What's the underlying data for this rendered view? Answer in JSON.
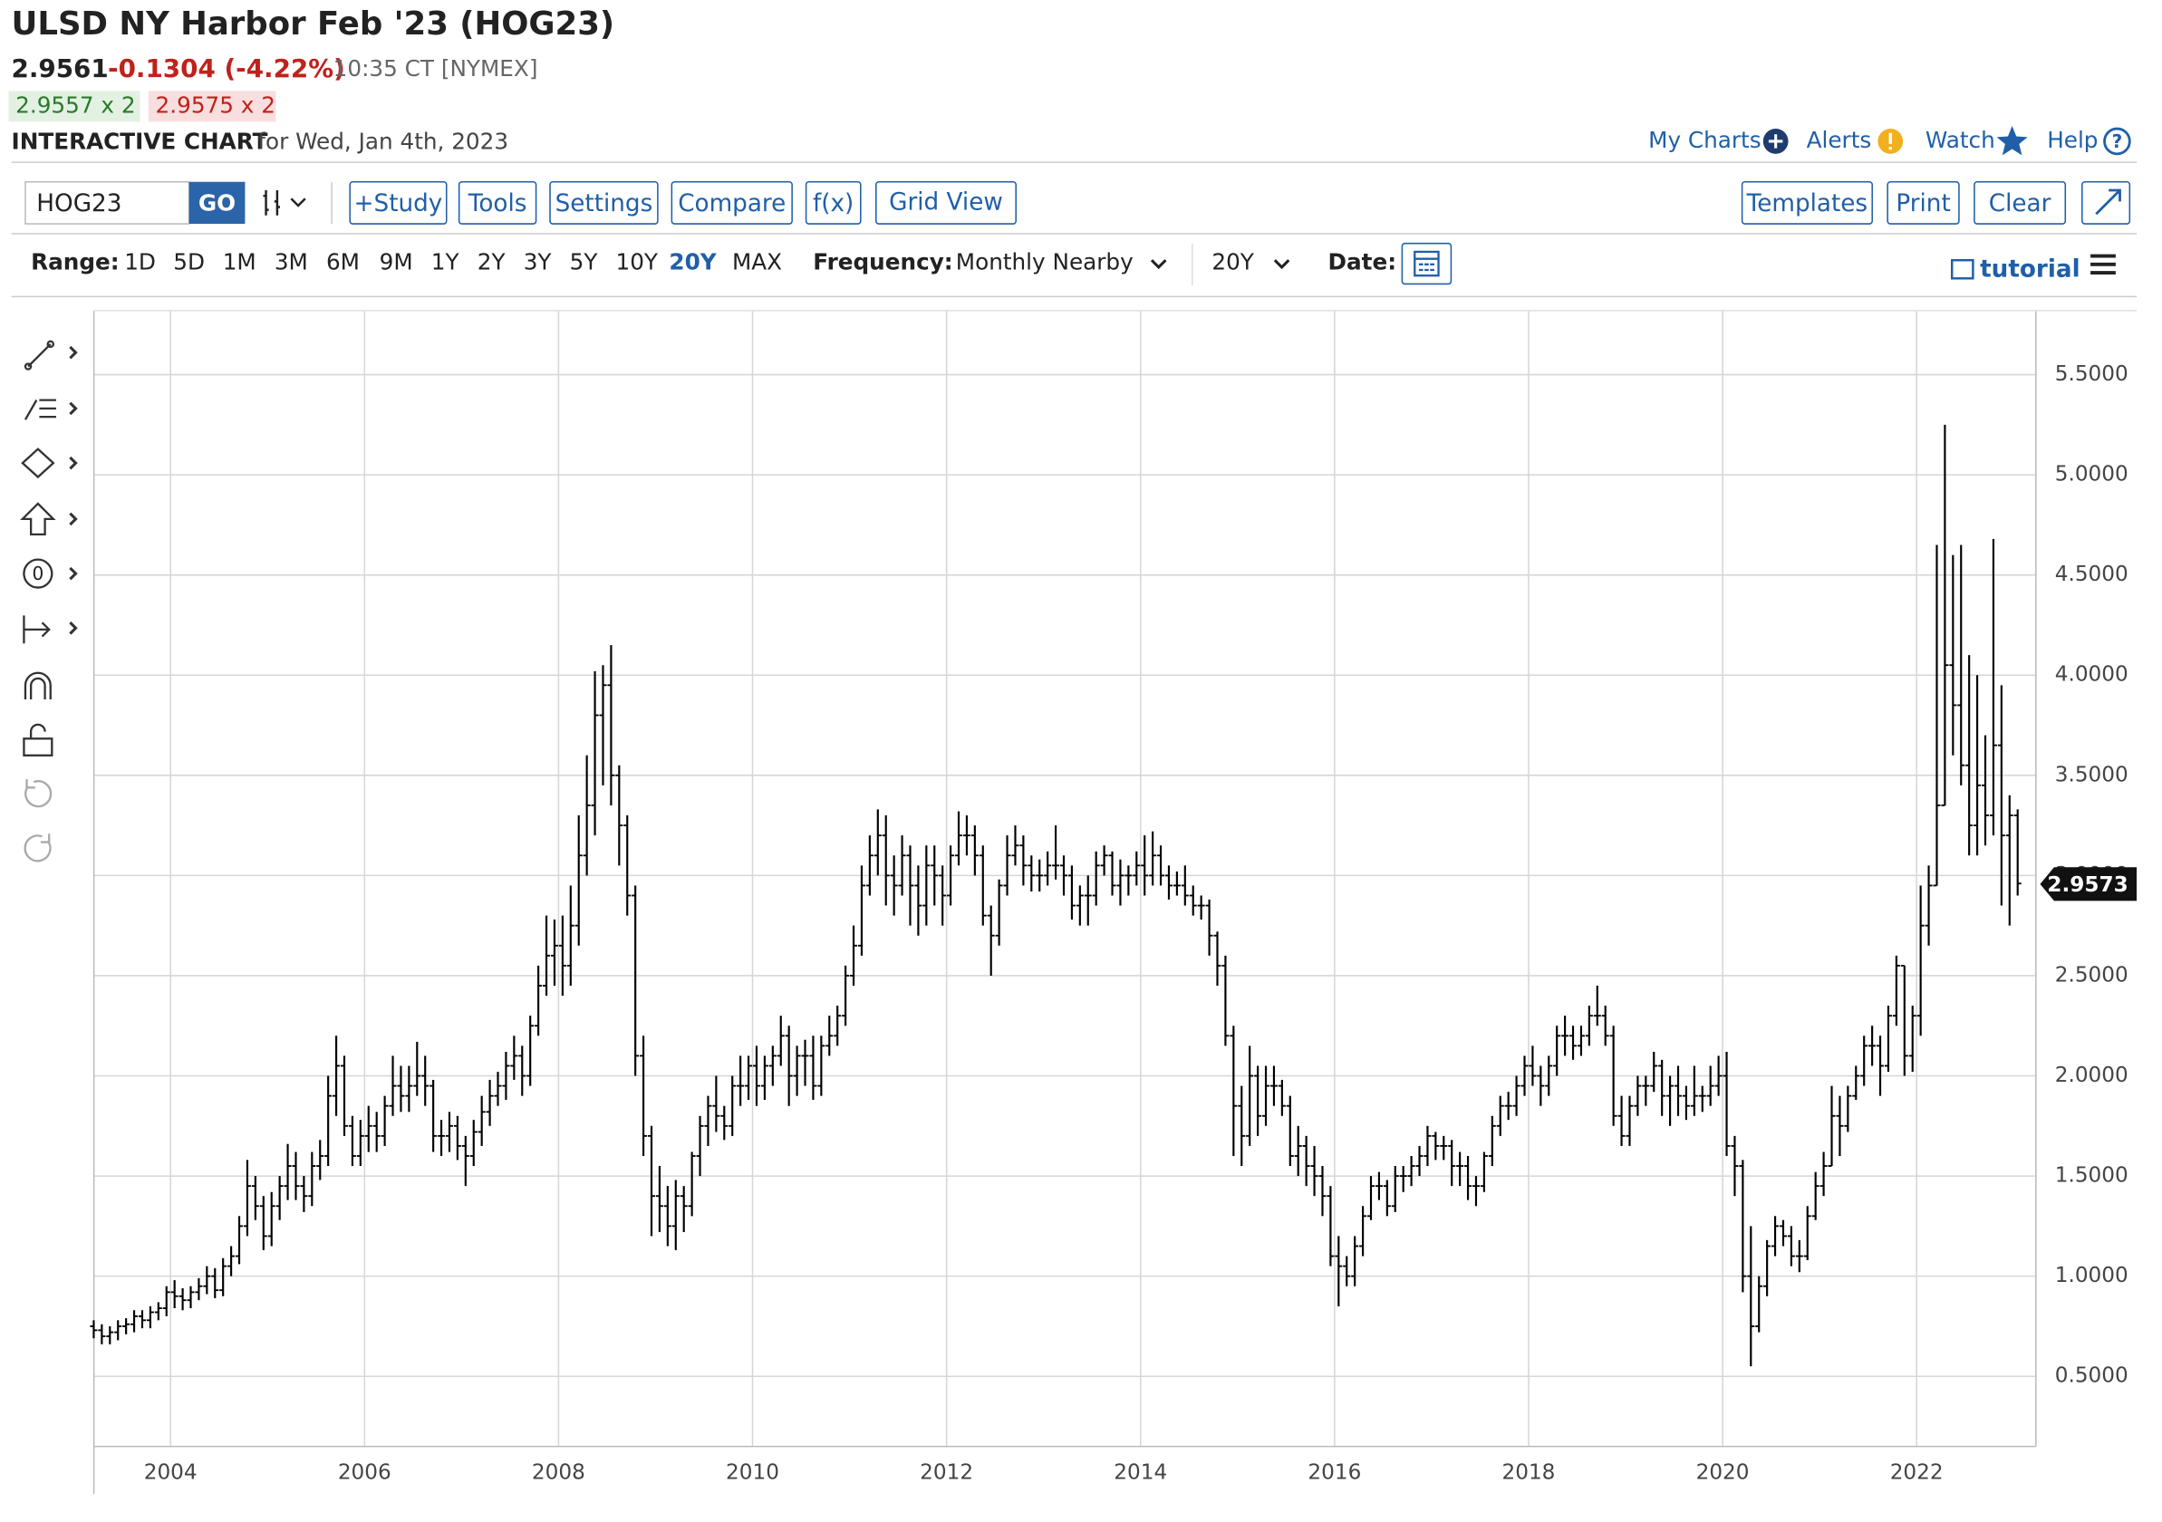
{
  "header": {
    "title": "ULSD NY Harbor Feb '23 (HOG23)",
    "price": "2.9561",
    "change": "-0.1304 (-4.22%)",
    "time": "10:35 CT [NYMEX]",
    "bid": "2.9557 x 2",
    "ask": "2.9575 x 2",
    "chart_label": "INTERACTIVE CHART",
    "chart_date": "for Wed, Jan 4th, 2023"
  },
  "links": [
    "My Charts",
    "Alerts",
    "Watch",
    "Help"
  ],
  "toolbar": {
    "symbol": "HOG23",
    "go": "GO",
    "buttons": [
      "+Study",
      "Tools",
      "Settings",
      "Compare",
      "f(x)",
      "Grid View"
    ],
    "right_buttons": [
      "Templates",
      "Print",
      "Clear"
    ]
  },
  "range_bar": {
    "label": "Range:",
    "ranges": [
      "1D",
      "5D",
      "1M",
      "3M",
      "6M",
      "9M",
      "1Y",
      "2Y",
      "3Y",
      "5Y",
      "10Y",
      "20Y",
      "MAX"
    ],
    "active": "20Y",
    "frequency_label": "Frequency:",
    "frequency": "Monthly Nearby",
    "period": "20Y",
    "date_label": "Date:",
    "tutorial": "tutorial"
  },
  "chart_data": {
    "type": "ohlc",
    "color": "#000000",
    "grid": true,
    "xlim": [
      2003.21,
      2023.23
    ],
    "xticks": [
      2004,
      2006,
      2008,
      2010,
      2012,
      2014,
      2016,
      2018,
      2020,
      2022
    ],
    "ylim": [
      0.15,
      5.82
    ],
    "yticks": [
      {
        "value": 0.5,
        "label": "0.5000"
      },
      {
        "value": 1,
        "label": "1.0000"
      },
      {
        "value": 1.5,
        "label": "1.5000"
      },
      {
        "value": 2,
        "label": "2.0000"
      },
      {
        "value": 2.5,
        "label": "2.5000"
      },
      {
        "value": 3,
        "label": "3.0000"
      },
      {
        "value": 3.5,
        "label": "3.5000"
      },
      {
        "value": 4,
        "label": "4.0000"
      },
      {
        "value": 4.5,
        "label": "4.5000"
      },
      {
        "value": 5,
        "label": "5.0000"
      },
      {
        "value": 5.5,
        "label": "5.5000"
      }
    ],
    "last_price": 2.9573,
    "x": [
      "2003-03",
      "2003-04",
      "2003-05",
      "2003-06",
      "2003-07",
      "2003-08",
      "2003-09",
      "2003-10",
      "2003-11",
      "2003-12",
      "2004-01",
      "2004-02",
      "2004-03",
      "2004-04",
      "2004-05",
      "2004-06",
      "2004-07",
      "2004-08",
      "2004-09",
      "2004-10",
      "2004-11",
      "2004-12",
      "2005-01",
      "2005-02",
      "2005-03",
      "2005-04",
      "2005-05",
      "2005-06",
      "2005-07",
      "2005-08",
      "2005-09",
      "2005-10",
      "2005-11",
      "2005-12",
      "2006-01",
      "2006-02",
      "2006-03",
      "2006-04",
      "2006-05",
      "2006-06",
      "2006-07",
      "2006-08",
      "2006-09",
      "2006-10",
      "2006-11",
      "2006-12",
      "2007-01",
      "2007-02",
      "2007-03",
      "2007-04",
      "2007-05",
      "2007-06",
      "2007-07",
      "2007-08",
      "2007-09",
      "2007-10",
      "2007-11",
      "2007-12",
      "2008-01",
      "2008-02",
      "2008-03",
      "2008-04",
      "2008-05",
      "2008-06",
      "2008-07",
      "2008-08",
      "2008-09",
      "2008-10",
      "2008-11",
      "2008-12",
      "2009-01",
      "2009-02",
      "2009-03",
      "2009-04",
      "2009-05",
      "2009-06",
      "2009-07",
      "2009-08",
      "2009-09",
      "2009-10",
      "2009-11",
      "2009-12",
      "2010-01",
      "2010-02",
      "2010-03",
      "2010-04",
      "2010-05",
      "2010-06",
      "2010-07",
      "2010-08",
      "2010-09",
      "2010-10",
      "2010-11",
      "2010-12",
      "2011-01",
      "2011-02",
      "2011-03",
      "2011-04",
      "2011-05",
      "2011-06",
      "2011-07",
      "2011-08",
      "2011-09",
      "2011-10",
      "2011-11",
      "2011-12",
      "2012-01",
      "2012-02",
      "2012-03",
      "2012-04",
      "2012-05",
      "2012-06",
      "2012-07",
      "2012-08",
      "2012-09",
      "2012-10",
      "2012-11",
      "2012-12",
      "2013-01",
      "2013-02",
      "2013-03",
      "2013-04",
      "2013-05",
      "2013-06",
      "2013-07",
      "2013-08",
      "2013-09",
      "2013-10",
      "2013-11",
      "2013-12",
      "2014-01",
      "2014-02",
      "2014-03",
      "2014-04",
      "2014-05",
      "2014-06",
      "2014-07",
      "2014-08",
      "2014-09",
      "2014-10",
      "2014-11",
      "2014-12",
      "2015-01",
      "2015-02",
      "2015-03",
      "2015-04",
      "2015-05",
      "2015-06",
      "2015-07",
      "2015-08",
      "2015-09",
      "2015-10",
      "2015-11",
      "2015-12",
      "2016-01",
      "2016-02",
      "2016-03",
      "2016-04",
      "2016-05",
      "2016-06",
      "2016-07",
      "2016-08",
      "2016-09",
      "2016-10",
      "2016-11",
      "2016-12",
      "2017-01",
      "2017-02",
      "2017-03",
      "2017-04",
      "2017-05",
      "2017-06",
      "2017-07",
      "2017-08",
      "2017-09",
      "2017-10",
      "2017-11",
      "2017-12",
      "2018-01",
      "2018-02",
      "2018-03",
      "2018-04",
      "2018-05",
      "2018-06",
      "2018-07",
      "2018-08",
      "2018-09",
      "2018-10",
      "2018-11",
      "2018-12",
      "2019-01",
      "2019-02",
      "2019-03",
      "2019-04",
      "2019-05",
      "2019-06",
      "2019-07",
      "2019-08",
      "2019-09",
      "2019-10",
      "2019-11",
      "2019-12",
      "2020-01",
      "2020-02",
      "2020-03",
      "2020-04",
      "2020-05",
      "2020-06",
      "2020-07",
      "2020-08",
      "2020-09",
      "2020-10",
      "2020-11",
      "2020-12",
      "2021-01",
      "2021-02",
      "2021-03",
      "2021-04",
      "2021-05",
      "2021-06",
      "2021-07",
      "2021-08",
      "2021-09",
      "2021-10",
      "2021-11",
      "2021-12",
      "2022-01",
      "2022-02",
      "2022-03",
      "2022-04",
      "2022-05",
      "2022-06",
      "2022-07",
      "2022-08",
      "2022-09",
      "2022-10",
      "2022-11",
      "2022-12",
      "2023-01"
    ],
    "open": [
      0.75,
      0.73,
      0.7,
      0.72,
      0.75,
      0.76,
      0.8,
      0.78,
      0.82,
      0.84,
      0.92,
      0.9,
      0.88,
      0.92,
      0.95,
      1.0,
      0.93,
      1.05,
      1.1,
      1.25,
      1.45,
      1.35,
      1.2,
      1.35,
      1.45,
      1.55,
      1.45,
      1.4,
      1.55,
      1.6,
      1.9,
      2.05,
      1.75,
      1.6,
      1.7,
      1.75,
      1.7,
      1.85,
      1.95,
      1.9,
      1.95,
      2.0,
      1.95,
      1.7,
      1.7,
      1.75,
      1.65,
      1.6,
      1.72,
      1.82,
      1.9,
      1.95,
      2.05,
      2.1,
      2.0,
      2.25,
      2.45,
      2.6,
      2.65,
      2.55,
      2.75,
      3.1,
      3.35,
      3.8,
      3.95,
      3.5,
      3.25,
      2.9,
      2.1,
      1.7,
      1.4,
      1.35,
      1.25,
      1.4,
      1.35,
      1.6,
      1.75,
      1.85,
      1.8,
      1.75,
      1.95,
      1.95,
      2.05,
      1.95,
      2.05,
      2.1,
      2.2,
      2.0,
      2.1,
      2.1,
      1.95,
      2.15,
      2.2,
      2.3,
      2.5,
      2.65,
      2.95,
      3.1,
      3.2,
      3.0,
      2.95,
      3.1,
      2.95,
      2.85,
      3.05,
      3.0,
      2.9,
      3.1,
      3.2,
      3.2,
      3.1,
      2.8,
      2.7,
      2.95,
      3.1,
      3.15,
      3.05,
      3.0,
      3.0,
      3.05,
      3.05,
      3.0,
      2.85,
      2.9,
      2.9,
      3.05,
      3.1,
      2.95,
      3.0,
      3.0,
      3.05,
      3.0,
      3.1,
      3.0,
      2.95,
      2.95,
      2.9,
      2.85,
      2.85,
      2.7,
      2.55,
      2.2,
      1.85,
      1.7,
      2.0,
      1.8,
      1.95,
      1.95,
      1.85,
      1.6,
      1.65,
      1.55,
      1.5,
      1.4,
      1.1,
      1.05,
      1.0,
      1.15,
      1.3,
      1.45,
      1.45,
      1.35,
      1.5,
      1.5,
      1.55,
      1.6,
      1.7,
      1.65,
      1.65,
      1.55,
      1.55,
      1.45,
      1.45,
      1.6,
      1.75,
      1.85,
      1.85,
      1.95,
      2.05,
      2.0,
      1.95,
      2.05,
      2.2,
      2.2,
      2.15,
      2.2,
      2.3,
      2.3,
      2.2,
      1.8,
      1.7,
      1.85,
      1.95,
      1.95,
      2.05,
      1.9,
      1.95,
      1.9,
      1.85,
      1.9,
      1.9,
      1.95,
      2.0,
      1.65,
      1.55,
      1.0,
      0.75,
      0.95,
      1.15,
      1.25,
      1.2,
      1.1,
      1.1,
      1.3,
      1.45,
      1.55,
      1.8,
      1.75,
      1.9,
      2.0,
      2.15,
      2.15,
      2.05,
      2.3,
      2.55,
      2.1,
      2.3,
      2.75,
      2.95,
      3.35,
      4.05,
      3.85,
      3.55,
      3.25,
      3.45,
      3.3,
      3.65,
      3.2,
      3.3
    ],
    "high": [
      0.78,
      0.76,
      0.75,
      0.78,
      0.79,
      0.83,
      0.83,
      0.85,
      0.87,
      0.95,
      0.98,
      0.94,
      0.95,
      0.99,
      1.05,
      1.04,
      1.09,
      1.15,
      1.3,
      1.58,
      1.5,
      1.4,
      1.42,
      1.5,
      1.66,
      1.62,
      1.5,
      1.62,
      1.68,
      2.0,
      2.2,
      2.1,
      1.8,
      1.78,
      1.85,
      1.82,
      1.9,
      2.1,
      2.05,
      2.05,
      2.17,
      2.1,
      1.98,
      1.78,
      1.82,
      1.8,
      1.7,
      1.78,
      1.9,
      1.98,
      2.02,
      2.12,
      2.2,
      2.15,
      2.3,
      2.55,
      2.8,
      2.78,
      2.8,
      2.95,
      3.3,
      3.6,
      4.02,
      4.05,
      4.15,
      3.55,
      3.3,
      2.95,
      2.2,
      1.75,
      1.55,
      1.45,
      1.48,
      1.45,
      1.62,
      1.8,
      1.9,
      2.0,
      1.85,
      2.0,
      2.1,
      2.1,
      2.15,
      2.1,
      2.15,
      2.3,
      2.25,
      2.15,
      2.18,
      2.2,
      2.2,
      2.3,
      2.35,
      2.55,
      2.75,
      3.05,
      3.2,
      3.33,
      3.3,
      3.1,
      3.2,
      3.15,
      3.05,
      3.15,
      3.15,
      3.05,
      3.15,
      3.32,
      3.3,
      3.25,
      3.15,
      2.85,
      2.98,
      3.2,
      3.25,
      3.2,
      3.1,
      3.08,
      3.12,
      3.25,
      3.1,
      3.05,
      2.95,
      3.0,
      3.12,
      3.15,
      3.12,
      3.08,
      3.05,
      3.12,
      3.2,
      3.22,
      3.15,
      3.05,
      3.02,
      3.05,
      2.95,
      2.9,
      2.88,
      2.72,
      2.6,
      2.25,
      1.95,
      2.15,
      2.05,
      2.05,
      2.05,
      1.98,
      1.9,
      1.75,
      1.7,
      1.65,
      1.55,
      1.45,
      1.2,
      1.1,
      1.2,
      1.35,
      1.5,
      1.52,
      1.48,
      1.55,
      1.55,
      1.6,
      1.65,
      1.75,
      1.72,
      1.7,
      1.68,
      1.62,
      1.6,
      1.5,
      1.62,
      1.8,
      1.9,
      1.92,
      2.0,
      2.1,
      2.15,
      2.05,
      2.1,
      2.25,
      2.3,
      2.25,
      2.25,
      2.35,
      2.45,
      2.35,
      2.25,
      1.9,
      1.9,
      2.0,
      2.0,
      2.12,
      2.08,
      2.0,
      2.05,
      1.95,
      2.05,
      1.95,
      2.05,
      2.1,
      2.12,
      1.7,
      1.58,
      1.25,
      1.0,
      1.18,
      1.3,
      1.28,
      1.25,
      1.18,
      1.35,
      1.52,
      1.62,
      1.95,
      1.9,
      1.95,
      2.05,
      2.2,
      2.25,
      2.2,
      2.35,
      2.6,
      2.55,
      2.35,
      2.95,
      3.05,
      4.65,
      5.25,
      4.6,
      4.65,
      4.1,
      4.0,
      3.7,
      4.68,
      3.95,
      3.4,
      3.33
    ],
    "low": [
      0.69,
      0.66,
      0.66,
      0.68,
      0.71,
      0.72,
      0.74,
      0.74,
      0.78,
      0.8,
      0.84,
      0.83,
      0.84,
      0.88,
      0.91,
      0.89,
      0.9,
      1.0,
      1.06,
      1.2,
      1.28,
      1.13,
      1.15,
      1.28,
      1.38,
      1.38,
      1.32,
      1.35,
      1.48,
      1.55,
      1.8,
      1.7,
      1.55,
      1.55,
      1.62,
      1.62,
      1.65,
      1.8,
      1.82,
      1.82,
      1.9,
      1.85,
      1.62,
      1.6,
      1.62,
      1.58,
      1.45,
      1.55,
      1.65,
      1.75,
      1.85,
      1.88,
      1.98,
      1.9,
      1.95,
      2.2,
      2.4,
      2.45,
      2.4,
      2.45,
      2.65,
      3.0,
      3.2,
      3.45,
      3.35,
      3.05,
      2.8,
      2.0,
      1.6,
      1.2,
      1.22,
      1.15,
      1.13,
      1.22,
      1.3,
      1.5,
      1.65,
      1.72,
      1.68,
      1.7,
      1.85,
      1.88,
      1.85,
      1.88,
      1.95,
      2.05,
      1.85,
      1.9,
      1.95,
      1.88,
      1.9,
      2.1,
      2.15,
      2.25,
      2.45,
      2.6,
      2.9,
      3.0,
      2.85,
      2.8,
      2.9,
      2.75,
      2.7,
      2.75,
      2.85,
      2.75,
      2.85,
      3.05,
      3.1,
      3.0,
      2.75,
      2.5,
      2.65,
      2.9,
      3.05,
      2.95,
      2.92,
      2.92,
      2.95,
      2.98,
      2.9,
      2.78,
      2.75,
      2.75,
      2.85,
      3.0,
      2.9,
      2.85,
      2.9,
      2.95,
      2.9,
      2.95,
      2.95,
      2.88,
      2.9,
      2.85,
      2.8,
      2.78,
      2.6,
      2.45,
      2.15,
      1.6,
      1.55,
      1.65,
      1.7,
      1.75,
      1.85,
      1.8,
      1.55,
      1.5,
      1.45,
      1.4,
      1.3,
      1.05,
      0.85,
      0.95,
      0.95,
      1.1,
      1.28,
      1.38,
      1.3,
      1.32,
      1.42,
      1.45,
      1.5,
      1.55,
      1.58,
      1.58,
      1.45,
      1.45,
      1.38,
      1.35,
      1.42,
      1.55,
      1.7,
      1.78,
      1.8,
      1.9,
      1.95,
      1.85,
      1.9,
      2.0,
      2.1,
      2.08,
      2.1,
      2.15,
      2.25,
      2.15,
      1.75,
      1.65,
      1.65,
      1.8,
      1.85,
      1.92,
      1.8,
      1.75,
      1.8,
      1.78,
      1.8,
      1.82,
      1.85,
      1.9,
      1.6,
      1.4,
      0.92,
      0.55,
      0.72,
      0.9,
      1.1,
      1.15,
      1.05,
      1.02,
      1.08,
      1.28,
      1.4,
      1.55,
      1.6,
      1.72,
      1.88,
      1.95,
      2.05,
      1.9,
      2.02,
      2.25,
      2.0,
      2.02,
      2.2,
      2.65,
      2.95,
      3.35,
      3.6,
      3.45,
      3.1,
      3.1,
      3.15,
      3.2,
      2.85,
      2.75,
      2.9
    ],
    "close": [
      0.73,
      0.7,
      0.72,
      0.75,
      0.76,
      0.8,
      0.78,
      0.82,
      0.84,
      0.92,
      0.9,
      0.88,
      0.92,
      0.95,
      1.0,
      0.93,
      1.05,
      1.1,
      1.25,
      1.45,
      1.35,
      1.2,
      1.35,
      1.45,
      1.55,
      1.45,
      1.4,
      1.55,
      1.6,
      1.9,
      2.05,
      1.75,
      1.6,
      1.7,
      1.75,
      1.7,
      1.85,
      1.95,
      1.9,
      1.95,
      2.0,
      1.95,
      1.7,
      1.7,
      1.75,
      1.65,
      1.6,
      1.72,
      1.82,
      1.9,
      1.95,
      2.05,
      2.1,
      2.0,
      2.25,
      2.45,
      2.6,
      2.65,
      2.55,
      2.75,
      3.1,
      3.35,
      3.8,
      3.95,
      3.5,
      3.25,
      2.9,
      2.1,
      1.7,
      1.4,
      1.35,
      1.25,
      1.4,
      1.35,
      1.6,
      1.75,
      1.85,
      1.8,
      1.75,
      1.95,
      1.95,
      2.05,
      1.95,
      2.05,
      2.1,
      2.2,
      2.0,
      2.1,
      2.1,
      1.95,
      2.15,
      2.2,
      2.3,
      2.5,
      2.65,
      2.95,
      3.1,
      3.2,
      3.0,
      2.95,
      3.1,
      2.95,
      2.85,
      3.05,
      3.0,
      2.9,
      3.1,
      3.2,
      3.2,
      3.1,
      2.8,
      2.7,
      2.95,
      3.1,
      3.15,
      3.05,
      3.0,
      3.0,
      3.05,
      3.05,
      3.0,
      2.85,
      2.9,
      2.9,
      3.05,
      3.1,
      2.95,
      3.0,
      3.0,
      3.05,
      3.0,
      3.1,
      3.0,
      2.95,
      2.95,
      2.9,
      2.85,
      2.85,
      2.7,
      2.55,
      2.2,
      1.85,
      1.7,
      2.0,
      1.8,
      1.95,
      1.95,
      1.85,
      1.6,
      1.65,
      1.55,
      1.5,
      1.4,
      1.1,
      1.05,
      1.0,
      1.15,
      1.3,
      1.45,
      1.45,
      1.35,
      1.5,
      1.5,
      1.55,
      1.6,
      1.7,
      1.65,
      1.65,
      1.55,
      1.55,
      1.45,
      1.45,
      1.6,
      1.75,
      1.85,
      1.85,
      1.95,
      2.05,
      2.0,
      1.95,
      2.05,
      2.2,
      2.2,
      2.15,
      2.2,
      2.3,
      2.3,
      2.2,
      1.8,
      1.7,
      1.85,
      1.95,
      1.95,
      2.05,
      1.9,
      1.95,
      1.9,
      1.85,
      1.9,
      1.9,
      1.95,
      2.0,
      1.65,
      1.55,
      1.0,
      0.75,
      0.95,
      1.15,
      1.25,
      1.2,
      1.1,
      1.1,
      1.3,
      1.45,
      1.55,
      1.8,
      1.75,
      1.9,
      2.0,
      2.15,
      2.15,
      2.05,
      2.3,
      2.55,
      2.1,
      2.3,
      2.75,
      2.95,
      3.35,
      4.05,
      3.85,
      3.55,
      3.25,
      3.45,
      3.3,
      3.65,
      3.2,
      3.3,
      2.96
    ]
  }
}
